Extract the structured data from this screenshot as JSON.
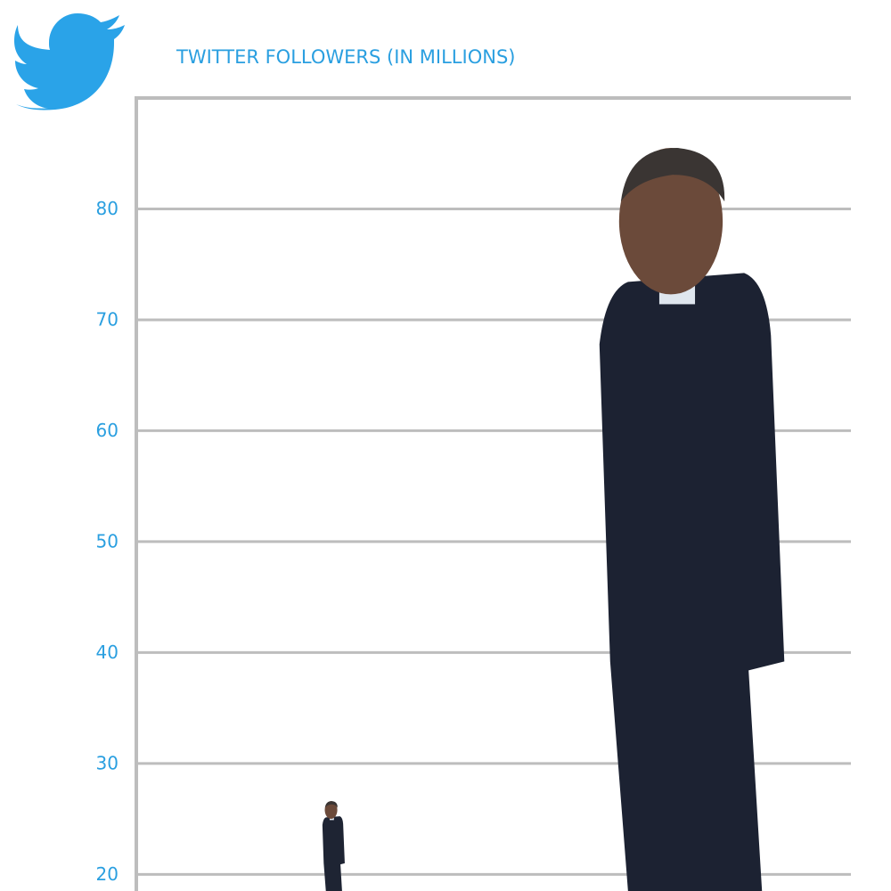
{
  "chart_data": {
    "type": "pictograph",
    "title": "TWITTER FOLLOWERS (IN MILLIONS)",
    "categories": [
      null,
      null
    ],
    "values": [
      26.6,
      85.5
    ],
    "colors": [
      "#1e2433",
      "#1c2232"
    ],
    "ylim": [
      18.5,
      90
    ],
    "yticks": [
      20,
      30,
      40,
      50,
      60,
      70,
      80
    ],
    "grid": true
  }
}
